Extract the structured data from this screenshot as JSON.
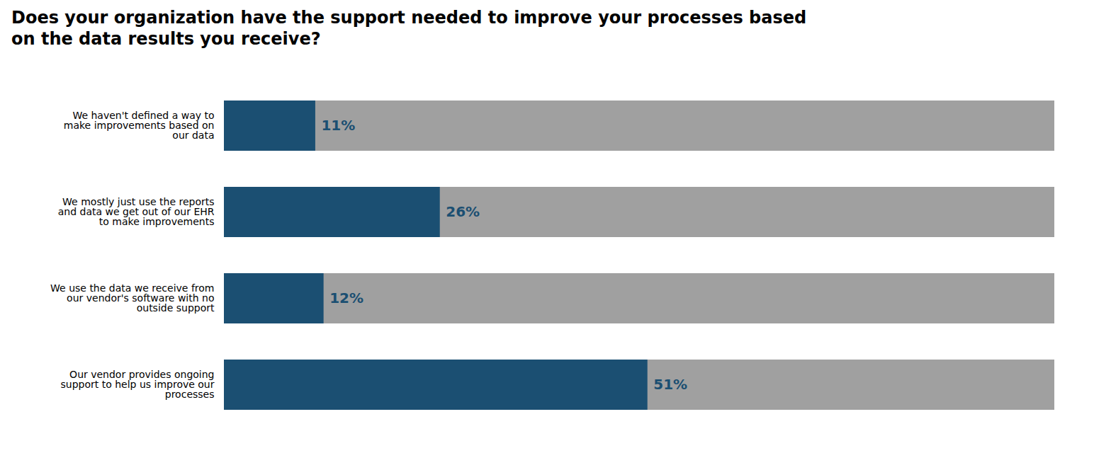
{
  "chart_data": {
    "type": "bar",
    "orientation": "horizontal",
    "title": "Does your organization have the support needed to improve your processes based\non the data results you receive?",
    "categories": [
      "We haven't defined a way to\nmake improvements based on\nour data",
      "We mostly just use the reports\nand data we get out of our EHR\nto make improvements",
      "We use the data we receive from\nour vendor's software with no\noutside support",
      "Our vendor provides ongoing\nsupport to help us improve our\nprocesses"
    ],
    "series": [
      {
        "color": "#a0a0a0",
        "values": [
          100,
          100,
          100,
          100
        ]
      },
      {
        "color": "#1b4f72",
        "values": [
          11,
          26,
          12,
          51
        ],
        "value_labels": [
          "11%",
          "26%",
          "12%",
          "51%"
        ]
      }
    ],
    "xlim": [
      0,
      100
    ],
    "data_labels": true,
    "tick_labels": "y",
    "grid": false
  }
}
